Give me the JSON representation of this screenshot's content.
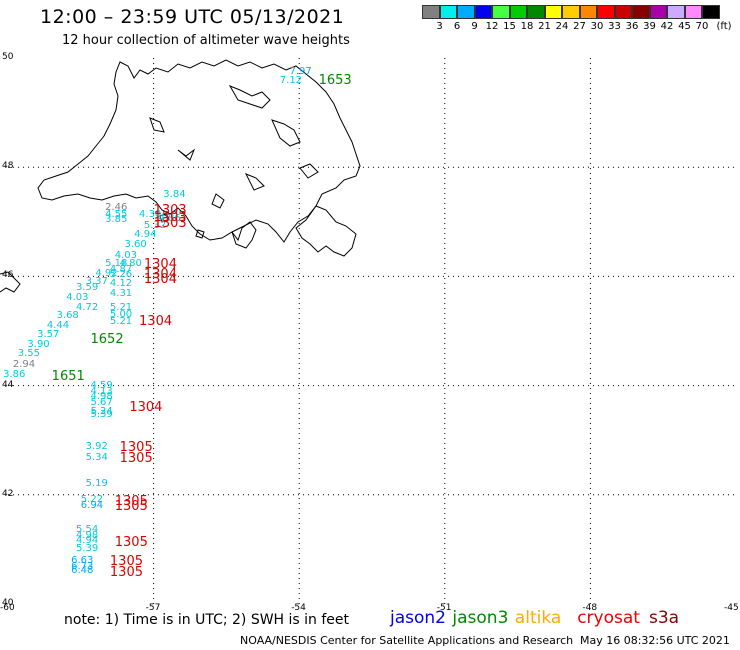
{
  "header": {
    "title": "12:00 – 23:59 UTC 05/13/2021",
    "subtitle": "12 hour collection of altimeter wave heights"
  },
  "legend": {
    "unit": "(ft)",
    "colors": [
      "#808080",
      "#00eeee",
      "#00aaff",
      "#0000ee",
      "#44ff44",
      "#00cc00",
      "#008800",
      "#ffff00",
      "#ffcc00",
      "#ff8800",
      "#ff0000",
      "#cc0000",
      "#880000",
      "#aa00aa",
      "#ccaaff",
      "#ff88ff",
      "#000000"
    ],
    "labels": [
      "3",
      "6",
      "9",
      "12",
      "15",
      "18",
      "21",
      "24",
      "27",
      "30",
      "33",
      "36",
      "39",
      "42",
      "45",
      "70"
    ]
  },
  "axes": {
    "x_labels": [
      "-60",
      "-57",
      "-54",
      "-51",
      "-48",
      "-45"
    ],
    "y_labels": [
      "50",
      "48",
      "46",
      "44",
      "42",
      "40"
    ],
    "lon_range": [
      -60,
      -45
    ],
    "lat_range": [
      40,
      50
    ]
  },
  "observations": [
    {
      "text": "7.97",
      "color": "#00aaff",
      "lon": -54.2,
      "lat": 49.75
    },
    {
      "text": "7.12",
      "color": "#00ccdd",
      "lon": -54.4,
      "lat": 49.57
    },
    {
      "text": "3.84",
      "color": "#00ccdd",
      "lon": -56.8,
      "lat": 47.5
    },
    {
      "text": "2.46",
      "color": "#808080",
      "lon": -58.0,
      "lat": 47.25
    },
    {
      "text": "4.55",
      "color": "#00ccdd",
      "lon": -58.0,
      "lat": 47.13
    },
    {
      "text": "4.30",
      "color": "#00ccdd",
      "lon": -57.3,
      "lat": 47.12
    },
    {
      "text": "3.85",
      "color": "#00ccdd",
      "lon": -58.0,
      "lat": 47.03
    },
    {
      "text": "4.86",
      "color": "#00ccdd",
      "lon": -56.9,
      "lat": 47.05
    },
    {
      "text": "5.32",
      "color": "#00ccdd",
      "lon": -57.2,
      "lat": 46.93
    },
    {
      "text": "4.94",
      "color": "#00ccdd",
      "lon": -57.4,
      "lat": 46.76
    },
    {
      "text": "3.60",
      "color": "#00ccdd",
      "lon": -57.6,
      "lat": 46.58
    },
    {
      "text": "4.03",
      "color": "#00ccdd",
      "lon": -57.8,
      "lat": 46.38
    },
    {
      "text": "5.18",
      "color": "#00ccdd",
      "lon": -58.0,
      "lat": 46.22
    },
    {
      "text": "4.80",
      "color": "#00ccdd",
      "lon": -57.7,
      "lat": 46.22
    },
    {
      "text": "4.87",
      "color": "#00ccdd",
      "lon": -57.9,
      "lat": 46.12
    },
    {
      "text": "4.92",
      "color": "#00ccdd",
      "lon": -58.2,
      "lat": 46.05
    },
    {
      "text": "5.26",
      "color": "#00ccdd",
      "lon": -57.9,
      "lat": 46.03
    },
    {
      "text": "3.37",
      "color": "#00ccdd",
      "lon": -58.4,
      "lat": 45.9
    },
    {
      "text": "4.12",
      "color": "#00ccdd",
      "lon": -57.9,
      "lat": 45.86
    },
    {
      "text": "3.59",
      "color": "#00ccdd",
      "lon": -58.6,
      "lat": 45.78
    },
    {
      "text": "4.31",
      "color": "#00ccdd",
      "lon": -57.9,
      "lat": 45.67
    },
    {
      "text": "4.03",
      "color": "#00ccdd",
      "lon": -58.8,
      "lat": 45.6
    },
    {
      "text": "4.72",
      "color": "#00ccdd",
      "lon": -58.6,
      "lat": 45.43
    },
    {
      "text": "5.21",
      "color": "#00ccdd",
      "lon": -57.9,
      "lat": 45.42
    },
    {
      "text": "3.68",
      "color": "#00ccdd",
      "lon": -59.0,
      "lat": 45.28
    },
    {
      "text": "5.00",
      "color": "#00ccdd",
      "lon": -57.9,
      "lat": 45.3
    },
    {
      "text": "4.44",
      "color": "#00ccdd",
      "lon": -59.2,
      "lat": 45.1
    },
    {
      "text": "5.21",
      "color": "#00ccdd",
      "lon": -57.9,
      "lat": 45.16
    },
    {
      "text": "3.57",
      "color": "#00ccdd",
      "lon": -59.4,
      "lat": 44.92
    },
    {
      "text": "3.90",
      "color": "#00ccdd",
      "lon": -59.6,
      "lat": 44.75
    },
    {
      "text": "3.55",
      "color": "#00ccdd",
      "lon": -59.8,
      "lat": 44.57
    },
    {
      "text": "2.94",
      "color": "#808080",
      "lon": -59.9,
      "lat": 44.38
    },
    {
      "text": "3.86",
      "color": "#00ccdd",
      "lon": -60.1,
      "lat": 44.2
    },
    {
      "text": "4.59",
      "color": "#00ccdd",
      "lon": -58.3,
      "lat": 44.0
    },
    {
      "text": "4.13",
      "color": "#00ccdd",
      "lon": -58.3,
      "lat": 43.89
    },
    {
      "text": "4.98",
      "color": "#00ccdd",
      "lon": -58.3,
      "lat": 43.8
    },
    {
      "text": "5.67",
      "color": "#00ccdd",
      "lon": -58.3,
      "lat": 43.68
    },
    {
      "text": "5.24",
      "color": "#00ccdd",
      "lon": -58.3,
      "lat": 43.52
    },
    {
      "text": "5.39",
      "color": "#00ccdd",
      "lon": -58.3,
      "lat": 43.46
    },
    {
      "text": "3.92",
      "color": "#00ccdd",
      "lon": -58.4,
      "lat": 42.87
    },
    {
      "text": "5.34",
      "color": "#00ccdd",
      "lon": -58.4,
      "lat": 42.67
    },
    {
      "text": "5.19",
      "color": "#00ccdd",
      "lon": -58.4,
      "lat": 42.2
    },
    {
      "text": "5.22",
      "color": "#00ccdd",
      "lon": -58.5,
      "lat": 41.9
    },
    {
      "text": "6.94",
      "color": "#00aaff",
      "lon": -58.5,
      "lat": 41.8
    },
    {
      "text": "5.54",
      "color": "#00ccdd",
      "lon": -58.6,
      "lat": 41.35
    },
    {
      "text": "4.98",
      "color": "#00ccdd",
      "lon": -58.6,
      "lat": 41.25
    },
    {
      "text": "4.94",
      "color": "#00ccdd",
      "lon": -58.6,
      "lat": 41.16
    },
    {
      "text": "5.39",
      "color": "#00ccdd",
      "lon": -58.6,
      "lat": 41.0
    },
    {
      "text": "6.63",
      "color": "#00aaff",
      "lon": -58.7,
      "lat": 40.78
    },
    {
      "text": "6.73",
      "color": "#00aaff",
      "lon": -58.7,
      "lat": 40.68
    },
    {
      "text": "6.48",
      "color": "#00aaff",
      "lon": -58.7,
      "lat": 40.6
    }
  ],
  "passes": [
    {
      "text": "1653",
      "color": "#008800",
      "lon": -53.6,
      "lat": 49.62
    },
    {
      "text": "1303",
      "color": "#dd0000",
      "lon": -57.0,
      "lat": 47.23
    },
    {
      "text": "1303",
      "color": "#dd0000",
      "lon": -57.0,
      "lat": 47.1
    },
    {
      "text": "1303",
      "color": "#dd0000",
      "lon": -57.0,
      "lat": 47.0
    },
    {
      "text": "1304",
      "color": "#dd0000",
      "lon": -57.2,
      "lat": 46.25
    },
    {
      "text": "1304",
      "color": "#dd0000",
      "lon": -57.2,
      "lat": 46.07
    },
    {
      "text": "1304",
      "color": "#dd0000",
      "lon": -57.2,
      "lat": 45.97
    },
    {
      "text": "1304",
      "color": "#dd0000",
      "lon": -57.3,
      "lat": 45.2
    },
    {
      "text": "1652",
      "color": "#008800",
      "lon": -58.3,
      "lat": 44.87
    },
    {
      "text": "1651",
      "color": "#008800",
      "lon": -59.1,
      "lat": 44.2
    },
    {
      "text": "1304",
      "color": "#dd0000",
      "lon": -57.5,
      "lat": 43.63
    },
    {
      "text": "1305",
      "color": "#dd0000",
      "lon": -57.7,
      "lat": 42.9
    },
    {
      "text": "1305",
      "color": "#dd0000",
      "lon": -57.7,
      "lat": 42.7
    },
    {
      "text": "1305",
      "color": "#dd0000",
      "lon": -57.8,
      "lat": 41.9
    },
    {
      "text": "1305",
      "color": "#dd0000",
      "lon": -57.8,
      "lat": 41.82
    },
    {
      "text": "1305",
      "color": "#dd0000",
      "lon": -57.8,
      "lat": 41.15
    },
    {
      "text": "1305",
      "color": "#dd0000",
      "lon": -57.9,
      "lat": 40.8
    },
    {
      "text": "1305",
      "color": "#dd0000",
      "lon": -57.9,
      "lat": 40.6
    }
  ],
  "footer": {
    "note": "note: 1) Time is in UTC; 2) SWH is in feet",
    "satellites": [
      {
        "name": "jason2",
        "color": "#0000ee"
      },
      {
        "name": "jason3",
        "color": "#008800"
      },
      {
        "name": "altika",
        "color": "#ffaa00"
      },
      {
        "name": "cryosat",
        "color": "#ee0000"
      },
      {
        "name": "s3a",
        "color": "#880000"
      }
    ],
    "credit": "NOAA/NESDIS Center for Satellite Applications and Research",
    "timestamp": "May 16 08:32:56 UTC 2021"
  }
}
